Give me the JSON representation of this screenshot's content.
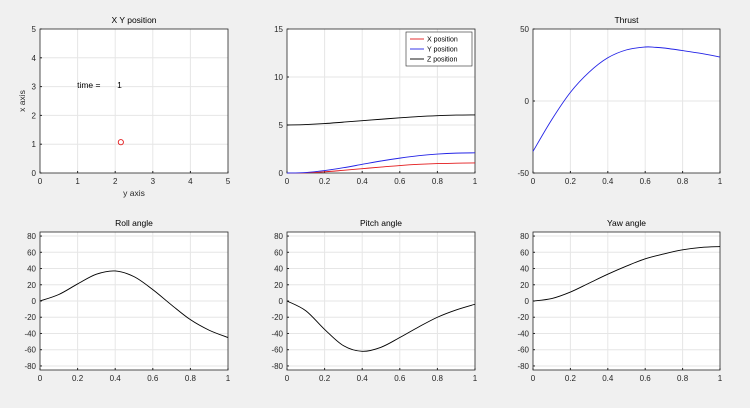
{
  "chart_data": [
    {
      "type": "scatter",
      "title": "X Y position",
      "xlabel": "y axis",
      "ylabel": "x axis",
      "xlim": [
        0,
        5
      ],
      "ylim": [
        0,
        5
      ],
      "xticks": [
        0,
        1,
        2,
        3,
        4,
        5
      ],
      "yticks": [
        0,
        1,
        2,
        3,
        4,
        5
      ],
      "grid": true,
      "series": [
        {
          "color": "#e31a1c",
          "marker": "circle",
          "x": [
            2.15
          ],
          "y": [
            1.07
          ]
        }
      ],
      "annotation": {
        "label": "time =",
        "value": "1",
        "x": 2.05,
        "y": 2.95
      }
    },
    {
      "type": "line",
      "title": "",
      "xlim": [
        0,
        1
      ],
      "ylim": [
        0,
        15
      ],
      "xticks": [
        0,
        0.2,
        0.4,
        0.6,
        0.8,
        1
      ],
      "yticks": [
        0,
        5,
        10,
        15
      ],
      "grid": true,
      "legend": "top-right",
      "x": [
        0,
        0.1,
        0.2,
        0.3,
        0.4,
        0.5,
        0.6,
        0.7,
        0.8,
        0.9,
        1.0
      ],
      "series": [
        {
          "name": "X position",
          "color": "#e31a1c",
          "values": [
            0,
            0.02,
            0.12,
            0.28,
            0.45,
            0.62,
            0.78,
            0.9,
            0.98,
            1.02,
            1.05
          ]
        },
        {
          "name": "Y position",
          "color": "#2323e6",
          "values": [
            0,
            0.05,
            0.25,
            0.55,
            0.9,
            1.25,
            1.55,
            1.8,
            1.97,
            2.07,
            2.1
          ]
        },
        {
          "name": "Z position",
          "color": "#000000",
          "values": [
            5.0,
            5.05,
            5.15,
            5.3,
            5.45,
            5.6,
            5.75,
            5.88,
            5.97,
            6.03,
            6.05
          ]
        }
      ]
    },
    {
      "type": "line",
      "title": "Thrust",
      "xlim": [
        0,
        1
      ],
      "ylim": [
        -50,
        50
      ],
      "xticks": [
        0,
        0.2,
        0.4,
        0.6,
        0.8,
        1
      ],
      "yticks": [
        -50,
        0,
        50
      ],
      "grid": true,
      "x": [
        0,
        0.1,
        0.2,
        0.3,
        0.4,
        0.5,
        0.6,
        0.65,
        0.7,
        0.8,
        0.9,
        1.0
      ],
      "series": [
        {
          "color": "#2323e6",
          "values": [
            -35,
            -13,
            6,
            20,
            30,
            35.5,
            37.5,
            37.3,
            36.8,
            35,
            33,
            30.5
          ]
        }
      ]
    },
    {
      "type": "line",
      "title": "Roll angle",
      "xlim": [
        0,
        1
      ],
      "ylim": [
        -85,
        85
      ],
      "xticks": [
        0,
        0.2,
        0.4,
        0.6,
        0.8,
        1
      ],
      "yticks": [
        -80,
        -60,
        -40,
        -20,
        0,
        20,
        40,
        60,
        80
      ],
      "grid": true,
      "x": [
        0,
        0.1,
        0.2,
        0.3,
        0.4,
        0.5,
        0.6,
        0.7,
        0.8,
        0.9,
        1.0
      ],
      "series": [
        {
          "color": "#000000",
          "values": [
            0,
            8,
            21,
            33,
            37,
            30,
            14,
            -5,
            -23,
            -36,
            -45
          ]
        }
      ]
    },
    {
      "type": "line",
      "title": "Pitch angle",
      "xlim": [
        0,
        1
      ],
      "ylim": [
        -85,
        85
      ],
      "xticks": [
        0,
        0.2,
        0.4,
        0.6,
        0.8,
        1
      ],
      "yticks": [
        -80,
        -60,
        -40,
        -20,
        0,
        20,
        40,
        60,
        80
      ],
      "grid": true,
      "x": [
        0,
        0.1,
        0.2,
        0.3,
        0.4,
        0.5,
        0.6,
        0.7,
        0.8,
        0.9,
        1.0
      ],
      "series": [
        {
          "color": "#000000",
          "values": [
            0,
            -12,
            -35,
            -55,
            -62,
            -57,
            -45,
            -32,
            -20,
            -11,
            -4
          ]
        }
      ]
    },
    {
      "type": "line",
      "title": "Yaw angle",
      "xlim": [
        0,
        1
      ],
      "ylim": [
        -85,
        85
      ],
      "xticks": [
        0,
        0.2,
        0.4,
        0.6,
        0.8,
        1
      ],
      "yticks": [
        -80,
        -60,
        -40,
        -20,
        0,
        20,
        40,
        60,
        80
      ],
      "grid": true,
      "x": [
        0,
        0.1,
        0.2,
        0.3,
        0.4,
        0.5,
        0.6,
        0.7,
        0.8,
        0.9,
        1.0
      ],
      "series": [
        {
          "color": "#000000",
          "values": [
            0,
            3,
            11,
            22,
            33,
            43,
            52,
            58,
            63,
            66,
            67
          ]
        }
      ]
    }
  ]
}
